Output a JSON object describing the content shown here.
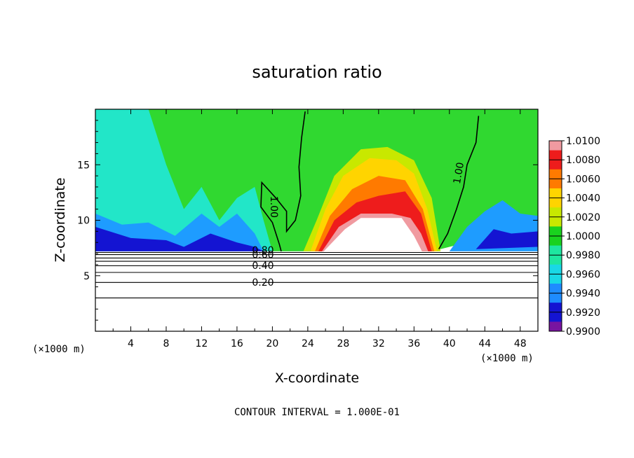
{
  "chart_data": {
    "type": "contour",
    "title": "saturation ratio",
    "xlabel": "X-coordinate",
    "ylabel": "Z-coordinate",
    "x_unit": "(×1000 m)",
    "y_unit": "(×1000 m)",
    "xlim": [
      0,
      50
    ],
    "ylim": [
      0,
      20
    ],
    "x_ticks": [
      4,
      8,
      12,
      16,
      20,
      24,
      28,
      32,
      36,
      40,
      44,
      48
    ],
    "y_ticks": [
      5,
      10,
      15
    ],
    "footer": "CONTOUR INTERVAL = 1.000E-01",
    "colorbar": {
      "levels": [
        "1.0100",
        "1.0080",
        "1.0060",
        "1.0040",
        "1.0020",
        "1.0000",
        "0.9980",
        "0.9960",
        "0.9940",
        "0.9920",
        "0.9900"
      ],
      "colors": [
        "#f09aa0",
        "#ee1c1c",
        "#ff7a00",
        "#ffd400",
        "#c8e800",
        "#19d21e",
        "#1ee6a0",
        "#19d8e6",
        "#1e8cff",
        "#1414d2",
        "#7814a0"
      ]
    },
    "fill_regions": [
      {
        "level": "1.0000",
        "color": "#30d830",
        "outline": [
          [
            0,
            20
          ],
          [
            50,
            20
          ],
          [
            50,
            9.2
          ],
          [
            48,
            8.6
          ],
          [
            44,
            8.2
          ],
          [
            41,
            7.8
          ],
          [
            38,
            7.2
          ],
          [
            0,
            7.2
          ]
        ]
      },
      {
        "level": "0.9960",
        "color": "#22e6c8",
        "outline": [
          [
            0,
            20
          ],
          [
            6,
            20
          ],
          [
            8,
            15
          ],
          [
            10,
            11
          ],
          [
            12,
            13
          ],
          [
            14,
            10
          ],
          [
            16,
            12
          ],
          [
            18,
            13
          ],
          [
            19,
            10
          ],
          [
            20,
            7.2
          ],
          [
            0,
            7.2
          ]
        ]
      },
      {
        "level": "0.9940",
        "color": "#1e9cff",
        "outline": [
          [
            0,
            10.6
          ],
          [
            3,
            9.6
          ],
          [
            6,
            9.8
          ],
          [
            9,
            8.6
          ],
          [
            12,
            10.6
          ],
          [
            14,
            9.4
          ],
          [
            16,
            10.6
          ],
          [
            18,
            8.8
          ],
          [
            19,
            7.2
          ],
          [
            0,
            7.2
          ]
        ]
      },
      {
        "level": "0.9920",
        "color": "#1414d2",
        "outline": [
          [
            0,
            9.4
          ],
          [
            4,
            8.4
          ],
          [
            8,
            8.2
          ],
          [
            10,
            7.6
          ],
          [
            13,
            8.8
          ],
          [
            16,
            8.0
          ],
          [
            18,
            7.6
          ],
          [
            19,
            7.2
          ],
          [
            0,
            7.2
          ]
        ]
      },
      {
        "level": "0.9940",
        "color": "#1e9cff",
        "outline": [
          [
            40,
            7.2
          ],
          [
            42,
            9.4
          ],
          [
            44,
            10.8
          ],
          [
            46,
            11.8
          ],
          [
            48,
            10.6
          ],
          [
            50,
            10.4
          ],
          [
            50,
            7.2
          ]
        ]
      },
      {
        "level": "0.9920",
        "color": "#1414d2",
        "outline": [
          [
            43,
            7.4
          ],
          [
            45,
            9.2
          ],
          [
            47,
            8.8
          ],
          [
            50,
            9.0
          ],
          [
            50,
            7.6
          ]
        ]
      },
      {
        "level": "1.0020",
        "color": "#c8e800",
        "outline": [
          [
            23.5,
            7.2
          ],
          [
            25,
            10
          ],
          [
            27,
            14
          ],
          [
            30,
            16.4
          ],
          [
            33,
            16.6
          ],
          [
            36,
            15.4
          ],
          [
            38,
            12
          ],
          [
            39,
            7.2
          ]
        ]
      },
      {
        "level": "1.0040",
        "color": "#ffd400",
        "outline": [
          [
            24.3,
            7.2
          ],
          [
            26,
            11
          ],
          [
            28,
            14
          ],
          [
            31,
            15.6
          ],
          [
            34,
            15.4
          ],
          [
            36,
            14.2
          ],
          [
            37.5,
            11
          ],
          [
            38.6,
            7.2
          ]
        ]
      },
      {
        "level": "1.0060",
        "color": "#ff7a00",
        "outline": [
          [
            24.8,
            7.2
          ],
          [
            26.5,
            10.4
          ],
          [
            29,
            12.8
          ],
          [
            32,
            14
          ],
          [
            35,
            13.6
          ],
          [
            37,
            11
          ],
          [
            38.3,
            7.2
          ]
        ]
      },
      {
        "level": "1.0080",
        "color": "#ee1c1c",
        "outline": [
          [
            25.2,
            7.2
          ],
          [
            27,
            10
          ],
          [
            29.5,
            11.6
          ],
          [
            32,
            12.2
          ],
          [
            35,
            12.6
          ],
          [
            36.8,
            10.6
          ],
          [
            38,
            7.2
          ]
        ]
      },
      {
        "level": "1.0100",
        "color": "#f09aa0",
        "outline": [
          [
            25.6,
            7.2
          ],
          [
            27.5,
            9.4
          ],
          [
            30,
            10.6
          ],
          [
            33.5,
            10.6
          ],
          [
            35.6,
            10.2
          ],
          [
            36.8,
            8.8
          ],
          [
            37.6,
            7.2
          ]
        ]
      },
      {
        "level": "blank",
        "color": "#ffffff",
        "outline": [
          [
            25.8,
            7.2
          ],
          [
            28.2,
            9.2
          ],
          [
            30,
            10.2
          ],
          [
            34.6,
            10.2
          ],
          [
            36,
            8.6
          ],
          [
            36.9,
            7.2
          ]
        ]
      }
    ],
    "contours": [
      {
        "value": "1.00",
        "path": [
          [
            23.7,
            19.8
          ],
          [
            23.3,
            17.4
          ],
          [
            23,
            14.8
          ],
          [
            23.2,
            12.2
          ],
          [
            22.6,
            10
          ],
          [
            21.6,
            9
          ],
          [
            21.6,
            10.8
          ],
          [
            20.4,
            12
          ],
          [
            18.8,
            13.4
          ],
          [
            18.7,
            11.2
          ],
          [
            20,
            9.8
          ],
          [
            20.8,
            7.8
          ],
          [
            21,
            7.2
          ]
        ]
      },
      {
        "value": "1.00",
        "path": [
          [
            43.3,
            19.4
          ],
          [
            43,
            17
          ],
          [
            42,
            15
          ],
          [
            41.6,
            13
          ],
          [
            40.8,
            11
          ],
          [
            39.8,
            8.8
          ],
          [
            38.8,
            7.4
          ]
        ]
      },
      {
        "value": "0.80",
        "path": [
          [
            0,
            7.1
          ],
          [
            50,
            7.1
          ]
        ]
      },
      {
        "value": "0.60",
        "path": [
          [
            0,
            6.6
          ],
          [
            50,
            6.6
          ]
        ]
      },
      {
        "value": "0.40",
        "path": [
          [
            0,
            5.9
          ],
          [
            50,
            5.9
          ]
        ]
      },
      {
        "value": "0.20",
        "path": [
          [
            0,
            4.4
          ],
          [
            50,
            4.4
          ]
        ]
      },
      {
        "value": "",
        "path": [
          [
            0,
            3.0
          ],
          [
            50,
            3.0
          ]
        ]
      },
      {
        "value": "",
        "path": [
          [
            0,
            6.9
          ],
          [
            50,
            6.9
          ]
        ]
      },
      {
        "value": "",
        "path": [
          [
            0,
            6.3
          ],
          [
            50,
            6.3
          ]
        ]
      },
      {
        "value": "",
        "path": [
          [
            0,
            5.3
          ],
          [
            50,
            5.3
          ]
        ]
      }
    ],
    "contour_labels": [
      {
        "text": "1.00",
        "x": 19.8,
        "y": 11.2
      },
      {
        "text": "1.00",
        "x": 41.4,
        "y": 14.2
      },
      {
        "text": "0.80",
        "x": 17.7,
        "y": 7.0
      },
      {
        "text": "0.60",
        "x": 17.7,
        "y": 6.6
      },
      {
        "text": "0.40",
        "x": 17.7,
        "y": 5.6
      },
      {
        "text": "0.20",
        "x": 17.7,
        "y": 4.1
      }
    ]
  }
}
